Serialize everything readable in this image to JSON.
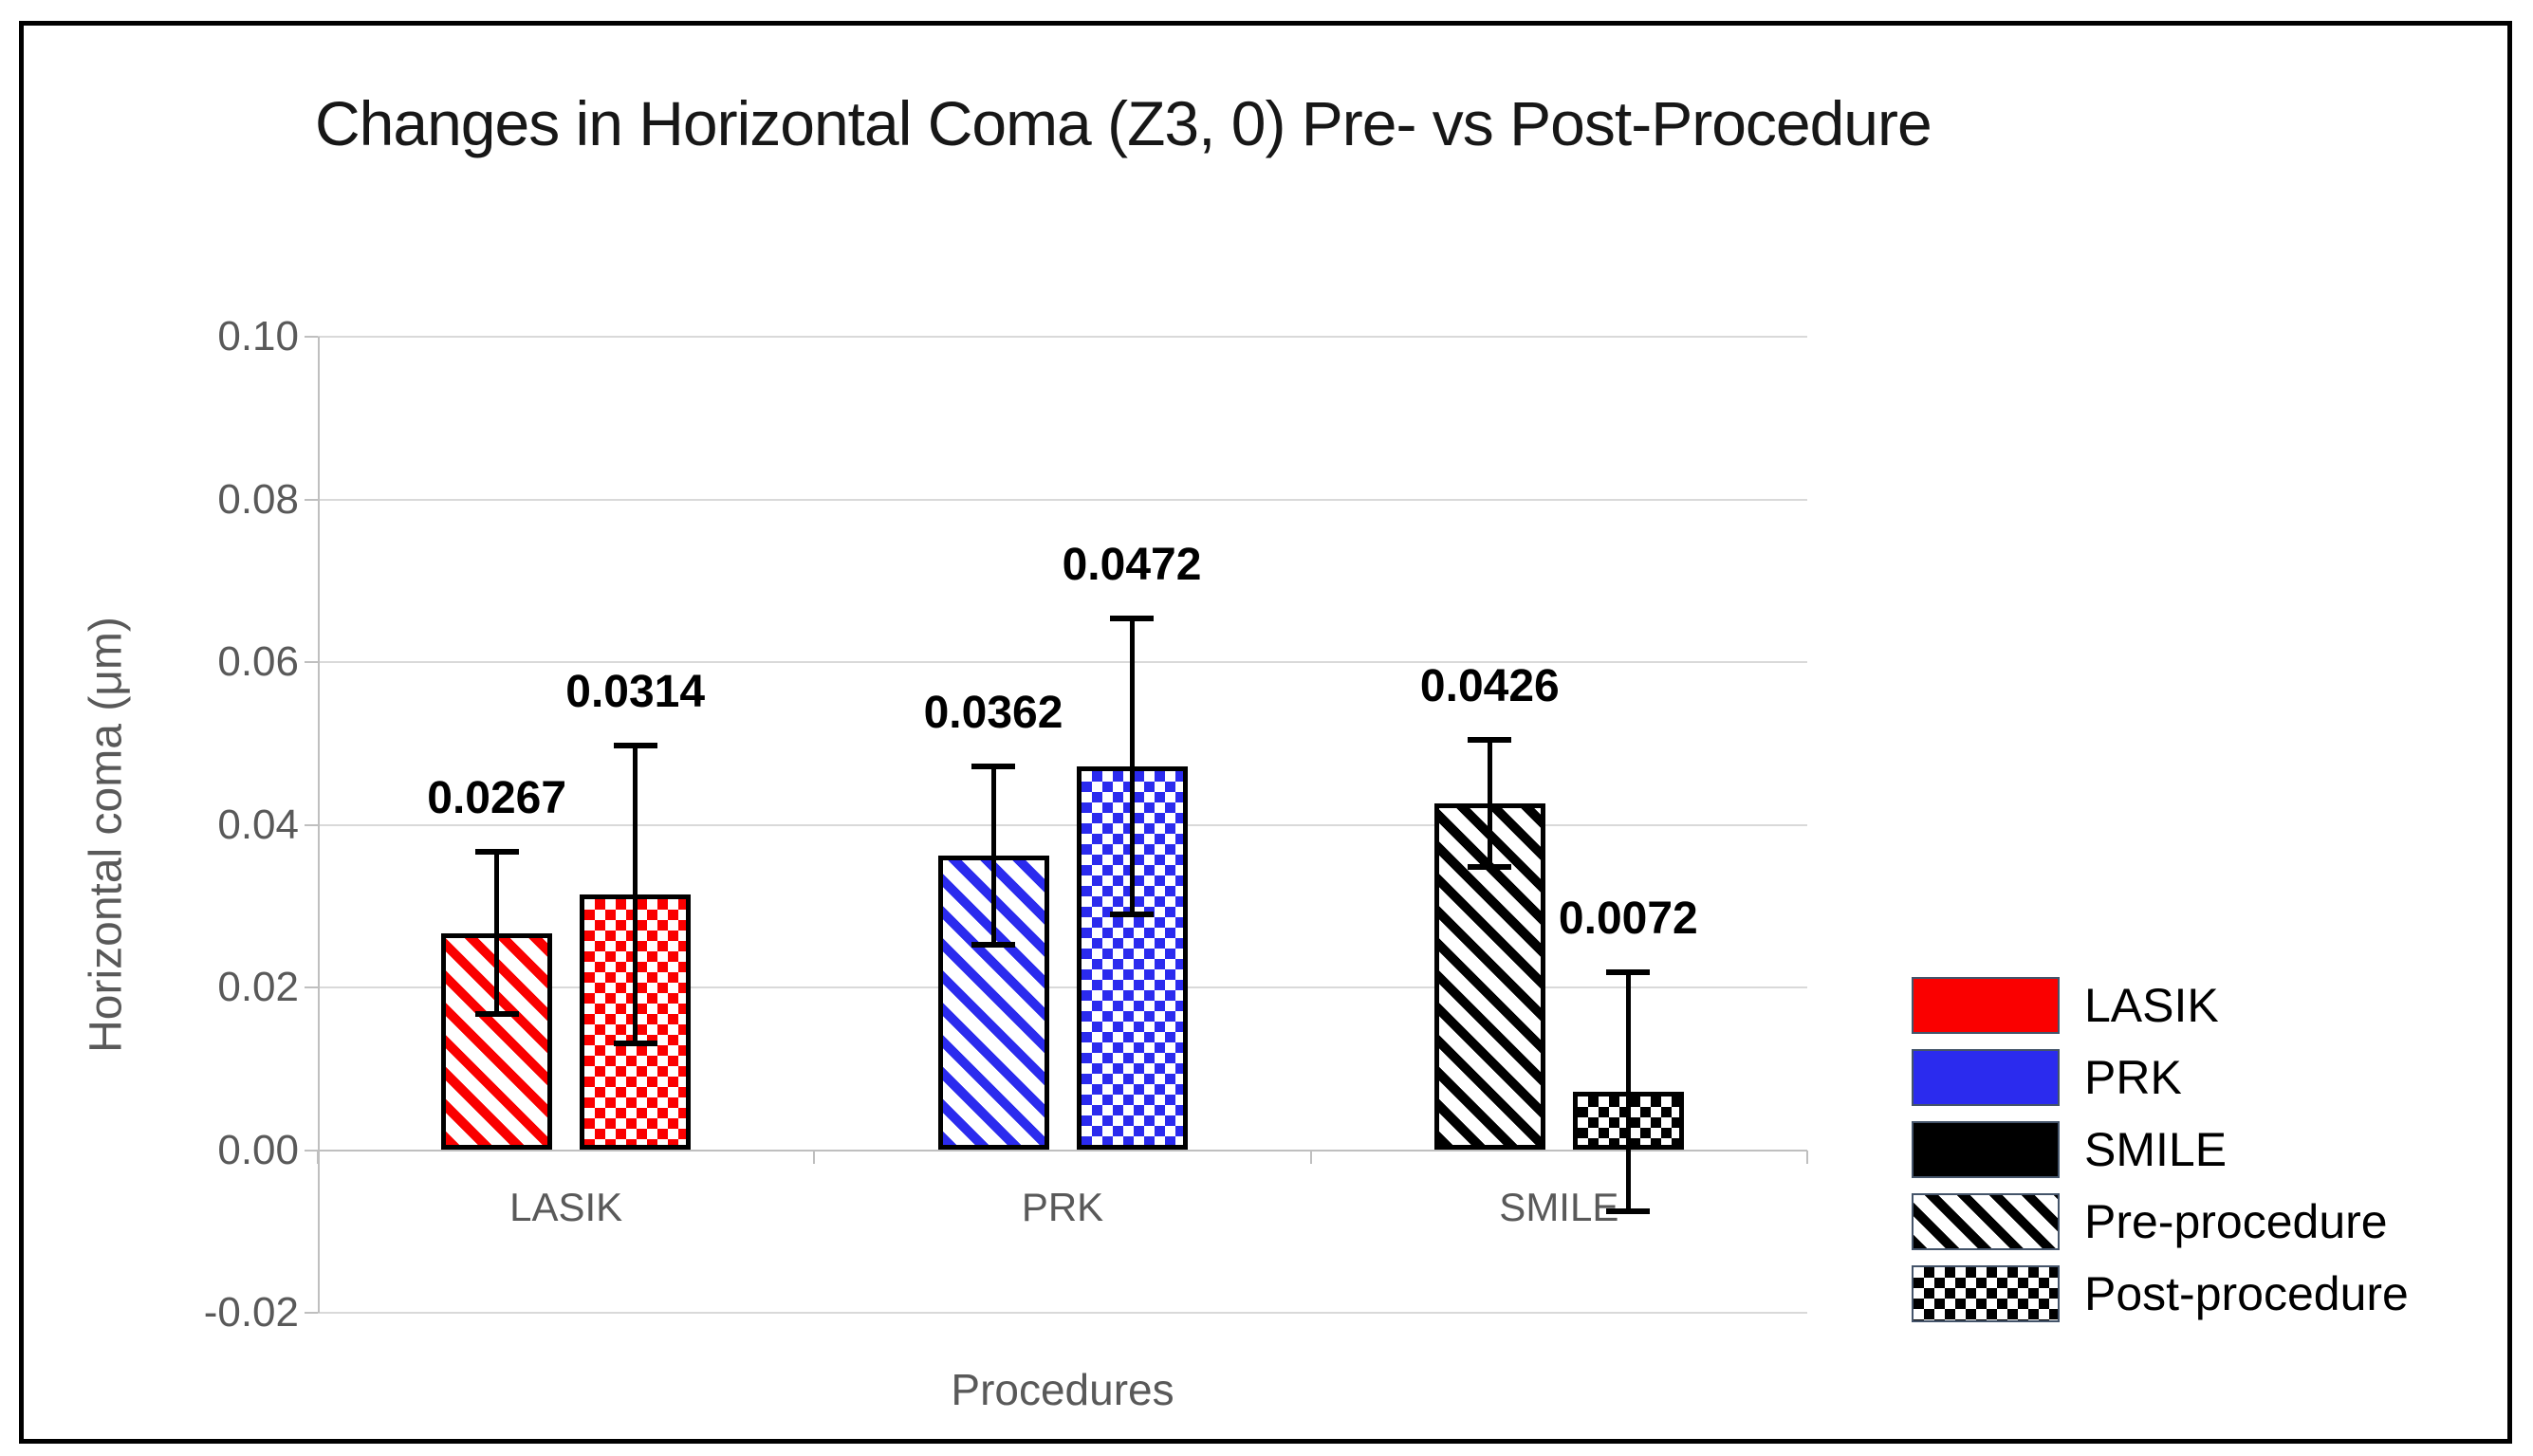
{
  "window": {
    "background": "#ffffff",
    "border_color": "#000000"
  },
  "chart_data": {
    "type": "bar",
    "title": "Changes in Horizontal Coma (Z3, 0) Pre- vs Post-Procedure",
    "xlabel": "Procedures",
    "ylabel": "Horizontal coma (μm)",
    "categories": [
      "LASIK",
      "PRK",
      "SMILE"
    ],
    "category_colors": [
      "#fa0000",
      "#2b2bee",
      "#000000"
    ],
    "series": [
      {
        "name": "Pre-procedure",
        "pattern": "diagonal-stripes",
        "values": [
          0.0267,
          0.0362,
          0.0426
        ],
        "labels": [
          "0.0267",
          "0.0362",
          "0.0426"
        ],
        "errors": [
          0.01,
          0.011,
          0.0078
        ]
      },
      {
        "name": "Post-procedure",
        "pattern": "checkerboard",
        "values": [
          0.0314,
          0.0472,
          0.0072
        ],
        "labels": [
          "0.0314",
          "0.0472",
          "0.0072"
        ],
        "errors": [
          0.0183,
          0.0182,
          0.0147
        ]
      }
    ],
    "ylim": [
      -0.02,
      0.1
    ],
    "yticks": [
      "0.10",
      "0.08",
      "0.06",
      "0.04",
      "0.02",
      "0.00",
      "-0.02"
    ],
    "grid": true,
    "legend_position": "right",
    "legend": [
      {
        "label": "LASIK",
        "swatch": "solid",
        "color": "#fa0000"
      },
      {
        "label": "PRK",
        "swatch": "solid",
        "color": "#2b2bee"
      },
      {
        "label": "SMILE",
        "swatch": "solid",
        "color": "#000000"
      },
      {
        "label": "Pre-procedure",
        "swatch": "diagonal-stripes",
        "color": "#000000"
      },
      {
        "label": "Post-procedure",
        "swatch": "checkerboard",
        "color": "#000000"
      }
    ],
    "colors": {
      "gridline": "#d9d9d9",
      "axis": "#bfbfbf",
      "tick_label": "#595959",
      "axis_title": "#595959",
      "data_label": "#000000",
      "error_bar": "#000000"
    }
  }
}
